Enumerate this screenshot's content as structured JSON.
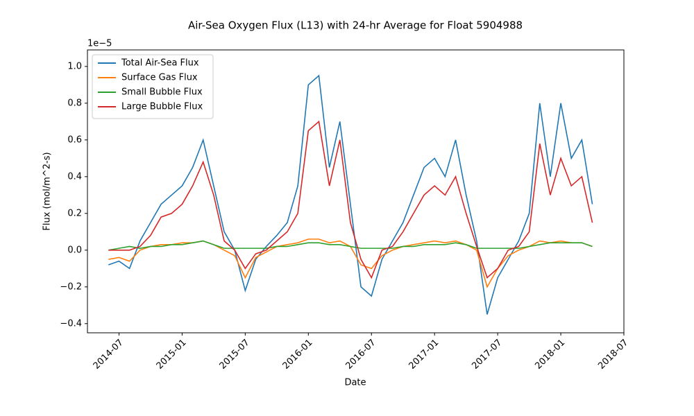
{
  "chart_data": {
    "type": "line",
    "title": "Air-Sea Oxygen Flux (L13) with 24-hr Average for Float 5904988",
    "x_label": "Date",
    "y_label": "Flux (mol/m^2-s)",
    "y_offset_text": "1e−5",
    "x": [
      "2014-06",
      "2014-07",
      "2014-08",
      "2014-09",
      "2014-10",
      "2014-11",
      "2014-12",
      "2015-01",
      "2015-02",
      "2015-03",
      "2015-04",
      "2015-05",
      "2015-06",
      "2015-07",
      "2015-08",
      "2015-09",
      "2015-10",
      "2015-11",
      "2015-12",
      "2016-01",
      "2016-02",
      "2016-03",
      "2016-04",
      "2016-05",
      "2016-06",
      "2016-07",
      "2016-08",
      "2016-09",
      "2016-10",
      "2016-11",
      "2016-12",
      "2017-01",
      "2017-02",
      "2017-03",
      "2017-04",
      "2017-05",
      "2017-06",
      "2017-07",
      "2017-08",
      "2017-09",
      "2017-10",
      "2017-11",
      "2017-12",
      "2018-01",
      "2018-02",
      "2018-03",
      "2018-04"
    ],
    "series": [
      {
        "name": "Total Air-Sea Flux",
        "color": "#1f77b4",
        "values": [
          -0.08,
          -0.06,
          -0.1,
          0.05,
          0.15,
          0.25,
          0.3,
          0.35,
          0.45,
          0.6,
          0.35,
          0.1,
          0.0,
          -0.22,
          -0.05,
          0.02,
          0.08,
          0.15,
          0.35,
          0.9,
          0.95,
          0.45,
          0.7,
          0.25,
          -0.2,
          -0.25,
          -0.05,
          0.05,
          0.15,
          0.3,
          0.45,
          0.5,
          0.4,
          0.6,
          0.3,
          0.05,
          -0.35,
          -0.15,
          -0.05,
          0.05,
          0.2,
          0.8,
          0.4,
          0.8,
          0.5,
          0.6,
          0.25
        ]
      },
      {
        "name": "Surface Gas Flux",
        "color": "#ff7f0e",
        "values": [
          -0.05,
          -0.04,
          -0.06,
          0.0,
          0.02,
          0.03,
          0.03,
          0.04,
          0.04,
          0.05,
          0.03,
          0.0,
          -0.03,
          -0.15,
          -0.04,
          -0.01,
          0.02,
          0.03,
          0.04,
          0.06,
          0.06,
          0.04,
          0.05,
          0.02,
          -0.08,
          -0.1,
          -0.03,
          0.0,
          0.02,
          0.03,
          0.04,
          0.05,
          0.04,
          0.05,
          0.03,
          0.0,
          -0.2,
          -0.1,
          -0.03,
          0.0,
          0.02,
          0.05,
          0.04,
          0.05,
          0.04,
          0.04,
          0.02
        ]
      },
      {
        "name": "Small Bubble Flux",
        "color": "#2ca02c",
        "values": [
          0.0,
          0.01,
          0.02,
          0.01,
          0.02,
          0.02,
          0.03,
          0.03,
          0.04,
          0.05,
          0.03,
          0.01,
          0.01,
          0.01,
          0.01,
          0.01,
          0.02,
          0.02,
          0.03,
          0.04,
          0.04,
          0.03,
          0.03,
          0.02,
          0.01,
          0.01,
          0.01,
          0.01,
          0.02,
          0.02,
          0.03,
          0.03,
          0.03,
          0.04,
          0.03,
          0.01,
          0.01,
          0.01,
          0.01,
          0.01,
          0.02,
          0.03,
          0.04,
          0.04,
          0.04,
          0.04,
          0.02
        ]
      },
      {
        "name": "Large Bubble Flux",
        "color": "#d62728",
        "values": [
          0.0,
          0.0,
          0.0,
          0.02,
          0.08,
          0.18,
          0.2,
          0.25,
          0.35,
          0.48,
          0.3,
          0.05,
          0.0,
          -0.1,
          -0.02,
          0.0,
          0.05,
          0.1,
          0.2,
          0.65,
          0.7,
          0.35,
          0.6,
          0.15,
          -0.05,
          -0.15,
          0.0,
          0.02,
          0.1,
          0.2,
          0.3,
          0.35,
          0.3,
          0.4,
          0.2,
          0.02,
          -0.15,
          -0.1,
          0.0,
          0.02,
          0.1,
          0.58,
          0.3,
          0.5,
          0.35,
          0.4,
          0.15
        ]
      }
    ],
    "xlim": [
      "2014-04",
      "2018-07"
    ],
    "xticks": [
      "2014-07",
      "2015-01",
      "2015-07",
      "2016-01",
      "2016-07",
      "2017-01",
      "2017-07",
      "2018-01",
      "2018-07"
    ],
    "ylim": [
      -0.45,
      1.09
    ],
    "yticks": [
      {
        "value": -0.4,
        "label": "−0.4"
      },
      {
        "value": -0.2,
        "label": "−0.2"
      },
      {
        "value": 0,
        "label": "0.0"
      },
      {
        "value": 0.2,
        "label": "0.2"
      },
      {
        "value": 0.4,
        "label": "0.4"
      },
      {
        "value": 0.6,
        "label": "0.6"
      },
      {
        "value": 0.8,
        "label": "0.8"
      },
      {
        "value": 1.0,
        "label": "1.0"
      }
    ],
    "legend": "upper left",
    "grid": false
  }
}
